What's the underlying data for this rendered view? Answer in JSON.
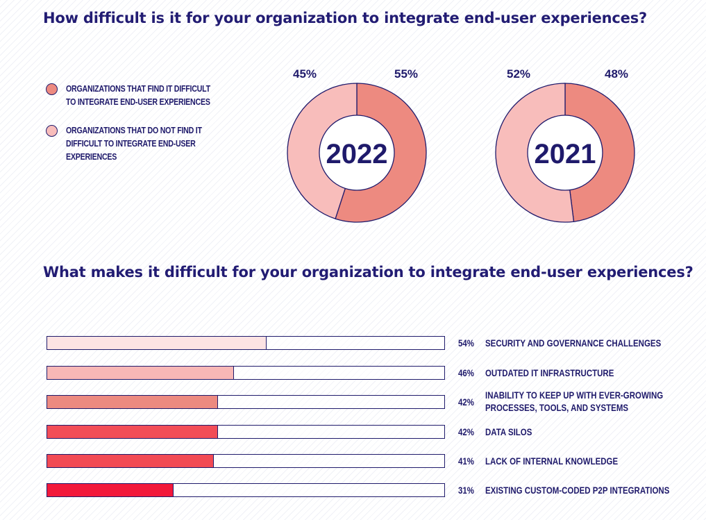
{
  "colors": {
    "difficult": "#ed8a80",
    "not_difficult": "#f8bdbb",
    "outline": "#1f1a6b",
    "bars": [
      "#fde3e3",
      "#f8b7b6",
      "#ec8a80",
      "#f24d57",
      "#f24a54",
      "#f2183a"
    ]
  },
  "chart_data": [
    {
      "type": "pie",
      "title": "How difficult is it for your organization to integrate end-user experiences?",
      "center_label": "2022",
      "legend": [
        "ORGANIZATIONS THAT FIND IT DIFFICULT TO INTEGRATE END-USER EXPERIENCES",
        "ORGANIZATIONS THAT DO NOT FIND IT DIFFICULT TO INTEGRATE END-USER EXPERIENCES"
      ],
      "legend_placement": "left",
      "slices": [
        {
          "value": 55,
          "label": "55%"
        },
        {
          "value": 45,
          "label": "45%"
        }
      ]
    },
    {
      "type": "pie",
      "center_label": "2021",
      "slices": [
        {
          "value": 48,
          "label": "48%"
        },
        {
          "value": 52,
          "label": "52%"
        }
      ]
    },
    {
      "type": "bar",
      "orientation": "horizontal",
      "title": "What makes it difficult for your organization to integrate end-user experiences?",
      "xlim": [
        0,
        100
      ],
      "grid": false,
      "categories": [
        "SECURITY AND GOVERNANCE CHALLENGES",
        "OUTDATED IT INFRASTRUCTURE",
        "INABILITY TO KEEP UP WITH EVER-GROWING PROCESSES, TOOLS, AND SYSTEMS",
        "DATA SILOS",
        "LACK OF INTERNAL KNOWLEDGE",
        "EXISTING CUSTOM-CODED P2P INTEGRATIONS"
      ],
      "values": [
        54,
        46,
        42,
        42,
        41,
        31
      ],
      "value_labels": [
        "54%",
        "46%",
        "42%",
        "42%",
        "41%",
        "31%"
      ]
    }
  ]
}
